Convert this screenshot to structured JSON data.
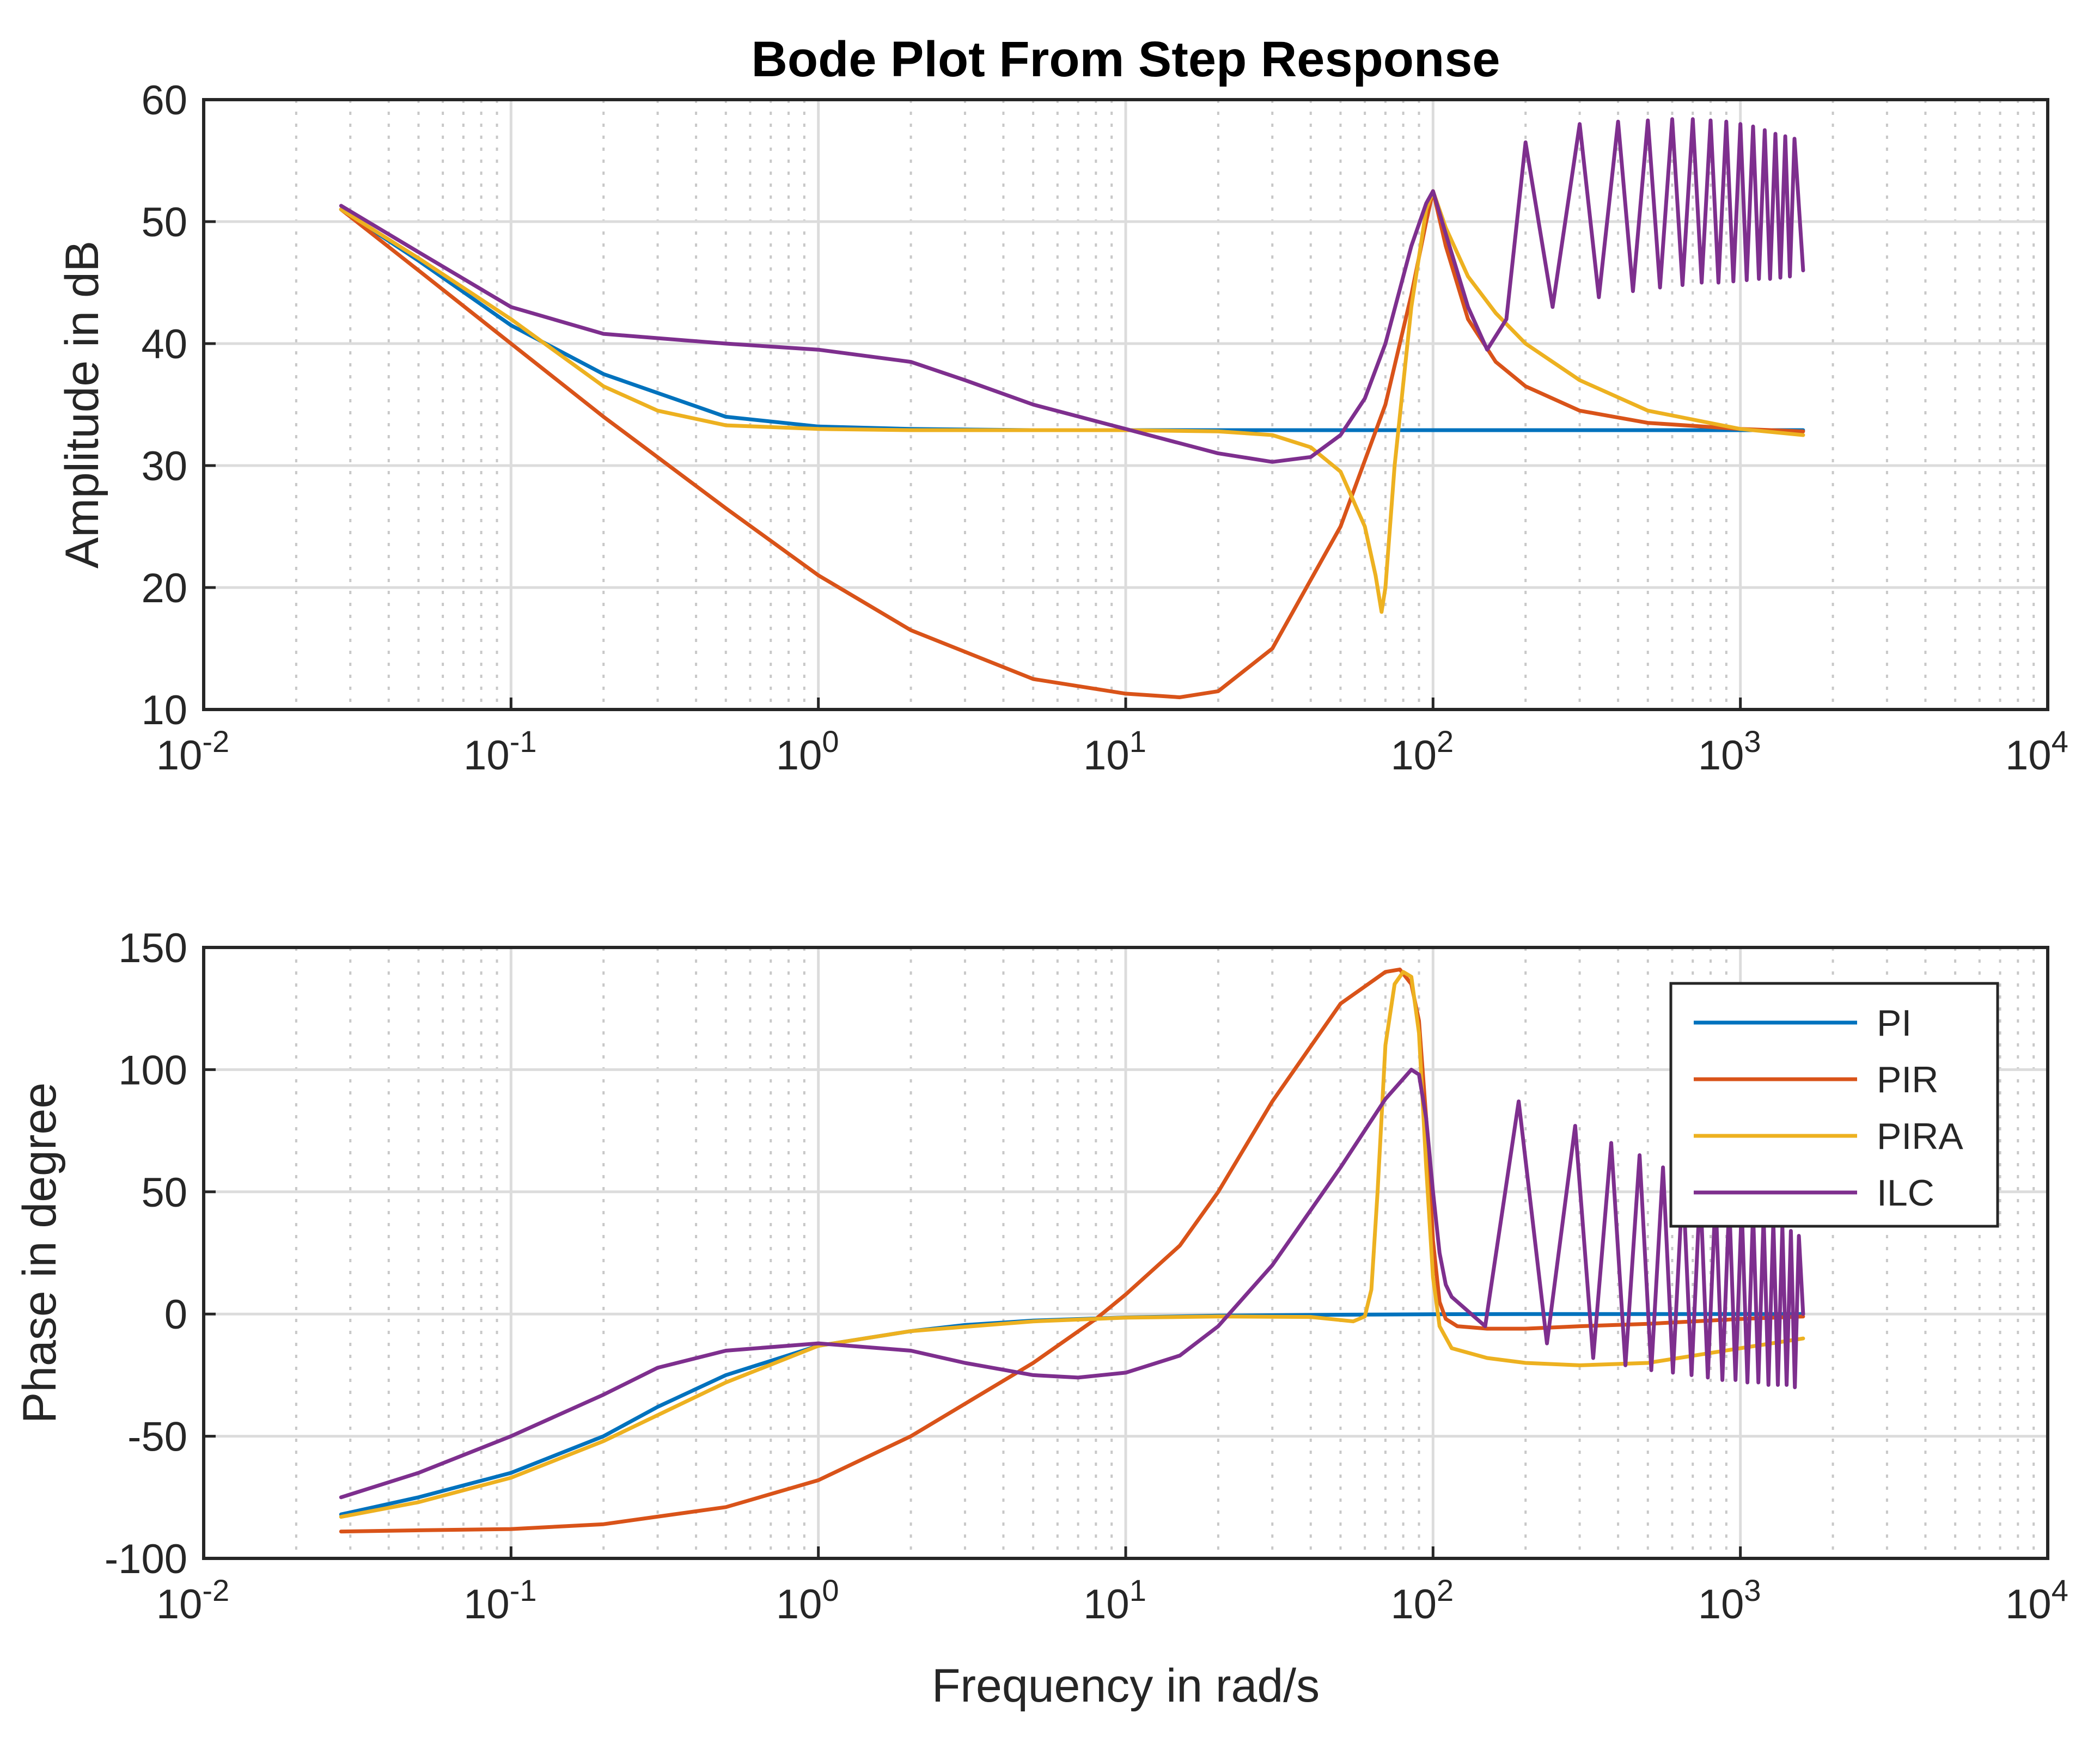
{
  "chart_data": [
    {
      "type": "line",
      "id": "amplitude",
      "title": "Bode Plot From Step Response",
      "xlabel": "",
      "ylabel": "Amplitude in dB",
      "xscale": "log",
      "xlim": [
        0.01,
        10000
      ],
      "ylim": [
        10,
        60
      ],
      "xticks": [
        {
          "base": "10",
          "exp": "-2"
        },
        {
          "base": "10",
          "exp": "-1"
        },
        {
          "base": "10",
          "exp": "0"
        },
        {
          "base": "10",
          "exp": "1"
        },
        {
          "base": "10",
          "exp": "2"
        },
        {
          "base": "10",
          "exp": "3"
        },
        {
          "base": "10",
          "exp": "4"
        }
      ],
      "yticks": [
        "10",
        "20",
        "30",
        "40",
        "50",
        "60"
      ],
      "grid": true,
      "series": [
        {
          "name": "PI",
          "color": "#0072BD",
          "x": [
            0.028,
            0.05,
            0.1,
            0.2,
            0.5,
            1,
            2,
            5,
            10,
            20,
            50,
            100,
            200,
            500,
            1000,
            1600
          ],
          "y": [
            51,
            46.8,
            41.5,
            37.5,
            34,
            33.2,
            33,
            32.9,
            32.9,
            32.9,
            32.9,
            32.9,
            32.9,
            32.9,
            32.9,
            32.9
          ]
        },
        {
          "name": "PIR",
          "color": "#D95319",
          "x": [
            0.028,
            0.05,
            0.1,
            0.2,
            0.5,
            1,
            2,
            5,
            10,
            15,
            20,
            30,
            50,
            70,
            85,
            95,
            100,
            110,
            130,
            160,
            200,
            300,
            500,
            1000,
            1600
          ],
          "y": [
            51,
            46,
            40,
            34,
            26.5,
            21,
            16.5,
            12.5,
            11.3,
            11,
            11.5,
            15,
            25,
            35,
            44,
            50,
            52.5,
            48,
            42,
            38.5,
            36.5,
            34.5,
            33.5,
            33,
            32.8
          ]
        },
        {
          "name": "PIRA",
          "color": "#EDB120",
          "x": [
            0.028,
            0.05,
            0.1,
            0.2,
            0.3,
            0.5,
            1,
            2,
            5,
            10,
            20,
            30,
            40,
            50,
            60,
            65,
            68,
            70,
            75,
            85,
            95,
            100,
            110,
            130,
            160,
            200,
            300,
            500,
            1000,
            1600
          ],
          "y": [
            51,
            47,
            42,
            36.5,
            34.5,
            33.3,
            33,
            32.9,
            32.9,
            32.9,
            32.8,
            32.5,
            31.5,
            29.5,
            25,
            21,
            18,
            20,
            30,
            43,
            51,
            52.5,
            49.5,
            45.5,
            42.5,
            40,
            37,
            34.5,
            33,
            32.5
          ]
        },
        {
          "name": "ILC",
          "color": "#7E2F8E",
          "x": [
            0.028,
            0.05,
            0.1,
            0.2,
            0.5,
            1,
            2,
            3,
            5,
            10,
            20,
            30,
            40,
            50,
            60,
            70,
            85,
            95,
            100,
            110,
            130,
            150
          ],
          "y": [
            51.3,
            47.5,
            43,
            40.8,
            40,
            39.5,
            38.5,
            37,
            35,
            33,
            31,
            30.3,
            30.7,
            32.5,
            35.5,
            40,
            48,
            51.5,
            52.5,
            49,
            43,
            39.5
          ],
          "oscillation": {
            "peak_x": [
              200,
              300,
              400,
              500,
              600,
              700,
              800,
              900,
              1000,
              1100,
              1200,
              1300,
              1400,
              1500
            ],
            "peak_y": [
              56.5,
              58,
              58.2,
              58.3,
              58.4,
              58.4,
              58.3,
              58.2,
              58,
              57.8,
              57.5,
              57.2,
              57,
              56.8
            ],
            "trough_y": [
              42,
              43,
              43.8,
              44.3,
              44.6,
              44.8,
              45,
              45,
              45.1,
              45.2,
              45.3,
              45.3,
              45.4,
              45.5
            ],
            "end_x": 1600,
            "end_y": 46
          }
        }
      ]
    },
    {
      "type": "line",
      "id": "phase",
      "title": "",
      "xlabel": "Frequency in rad/s",
      "ylabel": "Phase in degree",
      "xscale": "log",
      "xlim": [
        0.01,
        10000
      ],
      "ylim": [
        -100,
        150
      ],
      "xticks": [
        {
          "base": "10",
          "exp": "-2"
        },
        {
          "base": "10",
          "exp": "-1"
        },
        {
          "base": "10",
          "exp": "0"
        },
        {
          "base": "10",
          "exp": "1"
        },
        {
          "base": "10",
          "exp": "2"
        },
        {
          "base": "10",
          "exp": "3"
        },
        {
          "base": "10",
          "exp": "4"
        }
      ],
      "yticks": [
        "-100",
        "-50",
        "0",
        "50",
        "100",
        "150"
      ],
      "grid": true,
      "legend": {
        "position": "top-right",
        "entries": [
          "PI",
          "PIR",
          "PIRA",
          "ILC"
        ]
      },
      "series": [
        {
          "name": "PI",
          "color": "#0072BD",
          "x": [
            0.028,
            0.05,
            0.1,
            0.2,
            0.3,
            0.5,
            1,
            2,
            3,
            5,
            10,
            20,
            50,
            100,
            200,
            500,
            1000,
            1600
          ],
          "y": [
            -82,
            -75,
            -65,
            -50,
            -38,
            -25,
            -13,
            -7,
            -4.5,
            -2.7,
            -1.4,
            -0.7,
            -0.3,
            -0.1,
            0,
            0,
            0,
            0
          ]
        },
        {
          "name": "PIR",
          "color": "#D95319",
          "x": [
            0.028,
            0.05,
            0.1,
            0.2,
            0.5,
            1,
            2,
            5,
            8,
            10,
            15,
            20,
            30,
            50,
            70,
            78,
            85,
            90,
            95,
            100,
            105,
            110,
            120,
            150,
            200,
            300,
            500,
            1000,
            1600
          ],
          "y": [
            -89,
            -88.5,
            -88,
            -86,
            -79,
            -68,
            -50,
            -20,
            -2,
            8,
            28,
            50,
            87,
            127,
            140,
            141,
            135,
            120,
            80,
            30,
            5,
            -2,
            -5,
            -6,
            -6,
            -5,
            -4,
            -2,
            -1
          ]
        },
        {
          "name": "PIRA",
          "color": "#EDB120",
          "x": [
            0.028,
            0.05,
            0.1,
            0.2,
            0.5,
            1,
            2,
            5,
            10,
            20,
            40,
            55,
            60,
            63,
            66,
            70,
            75,
            80,
            85,
            90,
            95,
            100,
            105,
            115,
            150,
            200,
            300,
            500,
            1000,
            1600
          ],
          "y": [
            -83,
            -77,
            -67,
            -52,
            -28,
            -13,
            -7,
            -3,
            -1.5,
            -1,
            -1.2,
            -3,
            -1,
            10,
            50,
            110,
            135,
            140,
            138,
            115,
            60,
            15,
            -5,
            -14,
            -18,
            -20,
            -21,
            -20,
            -14,
            -10
          ]
        },
        {
          "name": "ILC",
          "color": "#7E2F8E",
          "x": [
            0.028,
            0.05,
            0.1,
            0.2,
            0.3,
            0.5,
            1,
            2,
            3,
            5,
            7,
            10,
            15,
            20,
            30,
            50,
            70,
            85,
            90,
            95,
            100,
            105,
            110,
            115
          ],
          "y": [
            -75,
            -65,
            -50,
            -33,
            -22,
            -15,
            -12,
            -15,
            -20,
            -25,
            -26,
            -24,
            -17,
            -5,
            20,
            60,
            88,
            100,
            98,
            80,
            50,
            25,
            12,
            7
          ],
          "oscillation": {
            "peak_x": [
              190,
              290,
              380,
              470,
              560,
              650,
              740,
              830,
              920,
              1010,
              1100,
              1190,
              1280,
              1370,
              1460,
              1550
            ],
            "peak_y": [
              87,
              77,
              70,
              65,
              60,
              55,
              52,
              48,
              46,
              44,
              42,
              40,
              38,
              36,
              34,
              32
            ],
            "trough_y": [
              -5,
              -12,
              -18,
              -21,
              -23,
              -24,
              -25,
              -26,
              -27,
              -27,
              -28,
              -28,
              -29,
              -29,
              -29,
              -30
            ],
            "end_x": 1600,
            "end_y": 0
          }
        }
      ]
    }
  ]
}
